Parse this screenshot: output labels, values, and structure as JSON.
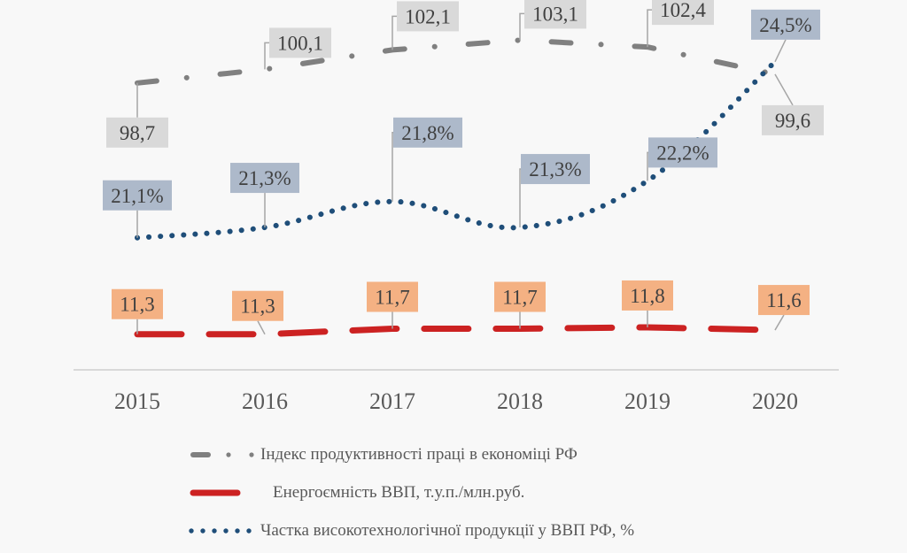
{
  "chart_data": {
    "type": "line",
    "title": "",
    "xlabel": "",
    "ylabel": "",
    "categories": [
      "2015",
      "2016",
      "2017",
      "2018",
      "2019",
      "2020"
    ],
    "grid": false,
    "legend_position": "bottom",
    "series": [
      {
        "key": "productivity",
        "name": "Індекс продуктивності праці в економіці РФ",
        "values": [
          98.7,
          100.1,
          102.1,
          103.1,
          102.4,
          99.6
        ],
        "labels": [
          "98,7",
          "100,1",
          "102,1",
          "103,1",
          "102,4",
          "99,6"
        ],
        "line_style": "dash-dot",
        "smooth": false,
        "color": "#808080",
        "label_bg": "#d9d9d9"
      },
      {
        "key": "energy",
        "name": "Енергоємність ВВП, т.у.п./млн.руб.",
        "values": [
          11.3,
          11.3,
          11.7,
          11.7,
          11.8,
          11.6
        ],
        "labels": [
          "11,3",
          "11,3",
          "11,7",
          "11,7",
          "11,8",
          "11,6"
        ],
        "line_style": "long-dash",
        "smooth": false,
        "color": "#cc2222",
        "label_bg": "#f4b183"
      },
      {
        "key": "hightech",
        "name": "Частка високотехнологічної продукції у ВВП РФ, %",
        "values": [
          21.1,
          21.3,
          21.8,
          21.3,
          22.2,
          24.5
        ],
        "labels": [
          "21,1%",
          "21,3%",
          "21,8%",
          "21,3%",
          "22,2%",
          "24,5%"
        ],
        "line_style": "dotted",
        "smooth": true,
        "color": "#1f4e79",
        "label_bg": "#adb9ca"
      }
    ]
  }
}
